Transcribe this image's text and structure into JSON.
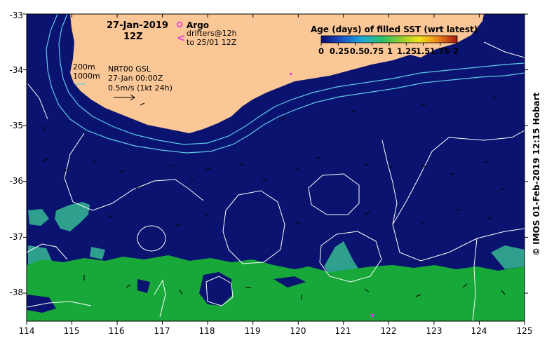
{
  "map": {
    "date_label": "27-Jan-2019",
    "time_label": "12Z",
    "product_label": "NRT00 GSL",
    "product_time": "27-Jan 00:00Z",
    "scale_label": "0.5m/s (1kt 24h)",
    "isobath_200": "200m",
    "isobath_1000": "1000m",
    "credit": "©  IMOS 01-Feb-2019 12:15 Hobart"
  },
  "legend": {
    "argo_label": "Argo",
    "drifter_label_1": "drifters@12h",
    "drifter_label_2": "to 25/01 12Z",
    "colorbar_title": "Age (days) of filled SST (wrt latest)",
    "colorbar_ticks": [
      "0",
      "0.25",
      "0.5",
      "0.75",
      "1",
      "1.25",
      "1.5",
      "1.75",
      "2"
    ]
  },
  "axes": {
    "lon_ticks": [
      "114",
      "115",
      "116",
      "117",
      "118",
      "119",
      "120",
      "121",
      "122",
      "123",
      "124",
      "125"
    ],
    "lat_ticks": [
      "-33",
      "-34",
      "-35",
      "-36",
      "-37",
      "-38"
    ]
  },
  "colors": {
    "ocean": "#0a1470",
    "land": "#fcc796",
    "aged_green": "#18a83a",
    "aged_teal": "#2f9f8e",
    "isobath": "#5ec8e6",
    "contour": "#ffffff",
    "argo": "#e83ad8"
  }
}
